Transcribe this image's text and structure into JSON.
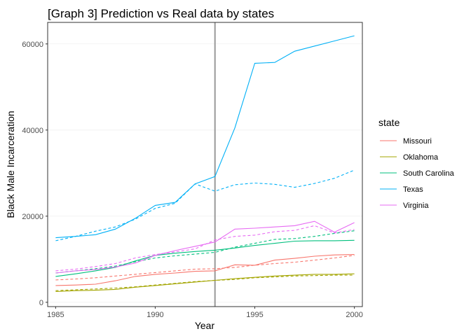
{
  "chart_data": {
    "type": "line",
    "title": "[Graph 3] Prediction vs Real data by states",
    "xlabel": "Year",
    "ylabel": "Black Male Incarceration",
    "xlim": [
      1984.6,
      2000.4
    ],
    "ylim": [
      -1000,
      65000
    ],
    "x_ticks": [
      1985,
      1990,
      1995,
      2000
    ],
    "y_ticks": [
      0,
      20000,
      40000,
      60000
    ],
    "y_tick_labels": [
      "0",
      "20000",
      "40000",
      "60000"
    ],
    "grid": true,
    "legend_position": "right",
    "legend_title": "state",
    "vertical_line": {
      "x": 1993,
      "color": "#999999"
    },
    "x": [
      1985,
      1986,
      1987,
      1988,
      1989,
      1990,
      1991,
      1992,
      1993,
      1994,
      1995,
      1996,
      1997,
      1998,
      1999,
      2000
    ],
    "series": [
      {
        "name": "Missouri",
        "color": "#F8766D",
        "actual": [
          3900,
          4000,
          4200,
          5000,
          6000,
          6500,
          6800,
          7200,
          7300,
          8700,
          8600,
          9800,
          10200,
          10700,
          11000,
          11100
        ],
        "predicted": [
          5200,
          5400,
          5700,
          6100,
          6500,
          6900,
          7300,
          7700,
          7800,
          8100,
          8600,
          9000,
          9300,
          9800,
          10300,
          10900
        ]
      },
      {
        "name": "Oklahoma",
        "color": "#A3A500",
        "actual": [
          2500,
          2700,
          2800,
          3000,
          3500,
          3900,
          4300,
          4700,
          5100,
          5500,
          5800,
          6100,
          6300,
          6500,
          6500,
          6600
        ],
        "predicted": [
          2700,
          2900,
          3100,
          3300,
          3600,
          4000,
          4400,
          4800,
          5100,
          5300,
          5700,
          5900,
          6100,
          6200,
          6300,
          6300
        ]
      },
      {
        "name": "South Carolina",
        "color": "#00BF7D",
        "actual": [
          6000,
          6600,
          7300,
          8100,
          9600,
          10900,
          11400,
          11800,
          12100,
          12600,
          13200,
          13700,
          14200,
          14300,
          14300,
          14400
        ],
        "predicted": [
          6800,
          7300,
          7800,
          8400,
          9400,
          10300,
          10800,
          11200,
          11600,
          12800,
          13700,
          14600,
          14800,
          15300,
          16000,
          16600
        ]
      },
      {
        "name": "Texas",
        "color": "#00B0F6",
        "actual": [
          15000,
          15300,
          15700,
          17000,
          19500,
          22500,
          23200,
          27500,
          29200,
          40500,
          55500,
          55700,
          58300,
          59500,
          60700,
          61900
        ],
        "predicted": [
          14300,
          15300,
          16500,
          17500,
          19300,
          21800,
          23000,
          27500,
          25800,
          27300,
          27700,
          27400,
          26700,
          27600,
          28800,
          30700
        ]
      },
      {
        "name": "Virginia",
        "color": "#E76BF3",
        "actual": [
          6800,
          7300,
          7600,
          8200,
          9100,
          10900,
          12000,
          13000,
          14000,
          17000,
          17200,
          17500,
          17800,
          18800,
          16300,
          18500
        ],
        "predicted": [
          7300,
          7700,
          8300,
          9000,
          10300,
          11100,
          11700,
          12400,
          14500,
          15300,
          15600,
          16400,
          16700,
          17800,
          16100,
          16900
        ]
      }
    ]
  }
}
